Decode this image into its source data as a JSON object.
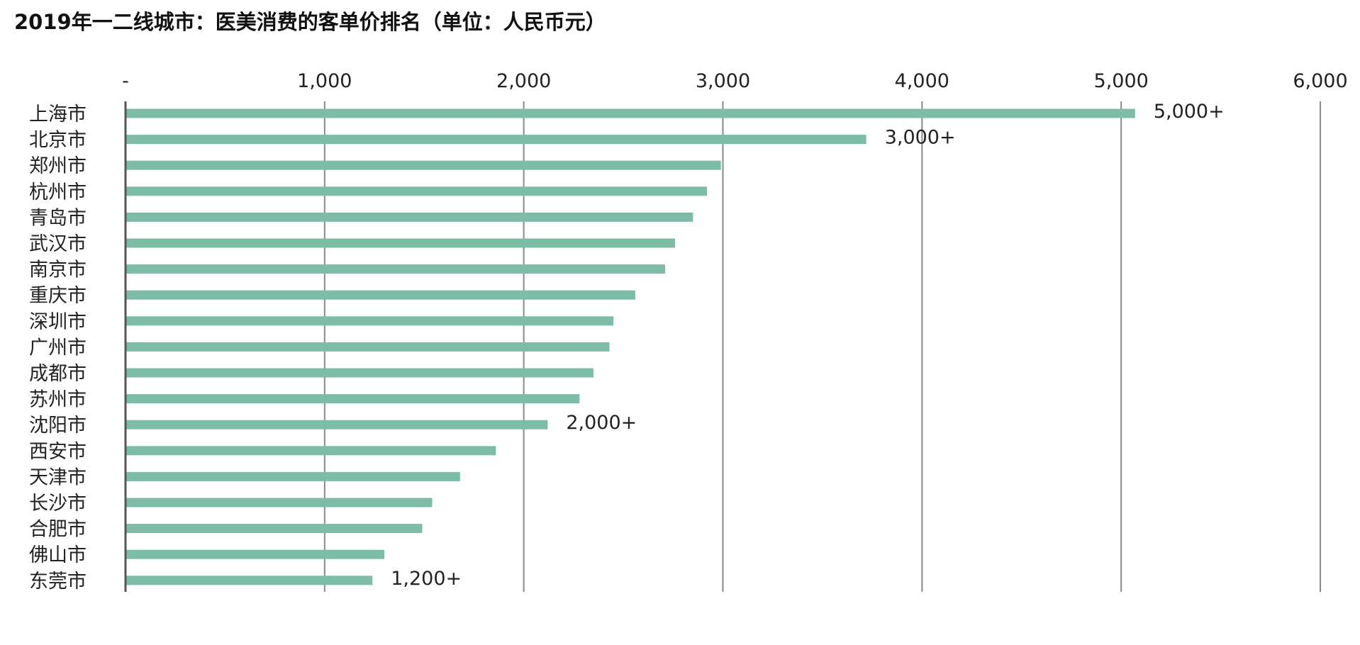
{
  "chart_data": {
    "type": "bar",
    "orientation": "horizontal",
    "title": "2019年一二线城市：医美消费的客单价排名（单位：人民币元）",
    "xlim": [
      0,
      6000
    ],
    "x_ticks": [
      0,
      1000,
      2000,
      3000,
      4000,
      5000,
      6000
    ],
    "x_tick_labels": [
      "-",
      "1,000",
      "2,000",
      "3,000",
      "4,000",
      "5,000",
      "6,000"
    ],
    "x_axis_position": "top",
    "grid": true,
    "bar_color": "#7dbca5",
    "categories": [
      "上海市",
      "北京市",
      "郑州市",
      "杭州市",
      "青岛市",
      "武汉市",
      "南京市",
      "重庆市",
      "深圳市",
      "广州市",
      "成都市",
      "苏州市",
      "沈阳市",
      "西安市",
      "天津市",
      "长沙市",
      "合肥市",
      "佛山市",
      "东莞市"
    ],
    "values": [
      5070,
      3720,
      2990,
      2920,
      2850,
      2760,
      2710,
      2560,
      2450,
      2430,
      2350,
      2280,
      2120,
      1860,
      1680,
      1540,
      1490,
      1300,
      1240
    ],
    "data_labels": [
      "5,000+",
      "3,000+",
      "",
      "",
      "",
      "",
      "",
      "",
      "",
      "",
      "",
      "",
      "2,000+",
      "",
      "",
      "",
      "",
      "",
      "1,200+"
    ]
  }
}
